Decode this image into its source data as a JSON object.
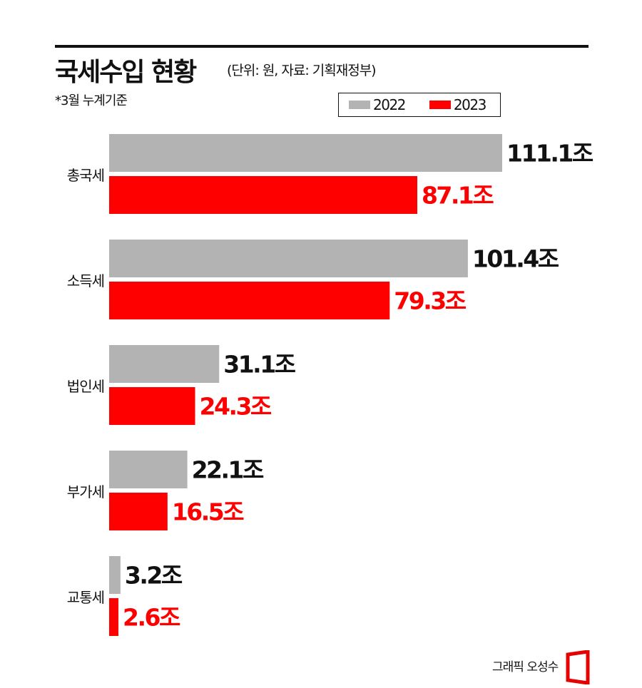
{
  "header": {
    "title": "국세수입 현황",
    "subtitle": "(단위: 원, 자료: 기획재정부)",
    "note": "*3월 누계기준"
  },
  "credit": "그래픽 오성수",
  "colors": {
    "series_2022": "#b3b3b3",
    "series_2023": "#ff0000",
    "text": "#111111"
  },
  "chart_data": {
    "type": "bar",
    "orientation": "horizontal",
    "title": "국세수입 현황",
    "unit_suffix": "조",
    "categories": [
      "총국세",
      "소득세",
      "법인세",
      "부가세",
      "교통세"
    ],
    "series": [
      {
        "name": "2022",
        "color": "#b3b3b3",
        "values": [
          111.1,
          101.4,
          31.1,
          22.1,
          3.2
        ]
      },
      {
        "name": "2023",
        "color": "#ff0000",
        "values": [
          87.1,
          79.3,
          24.3,
          16.5,
          2.6
        ]
      }
    ],
    "legend": {
      "position": "top-right",
      "labels": [
        "2022",
        "2023"
      ]
    }
  }
}
